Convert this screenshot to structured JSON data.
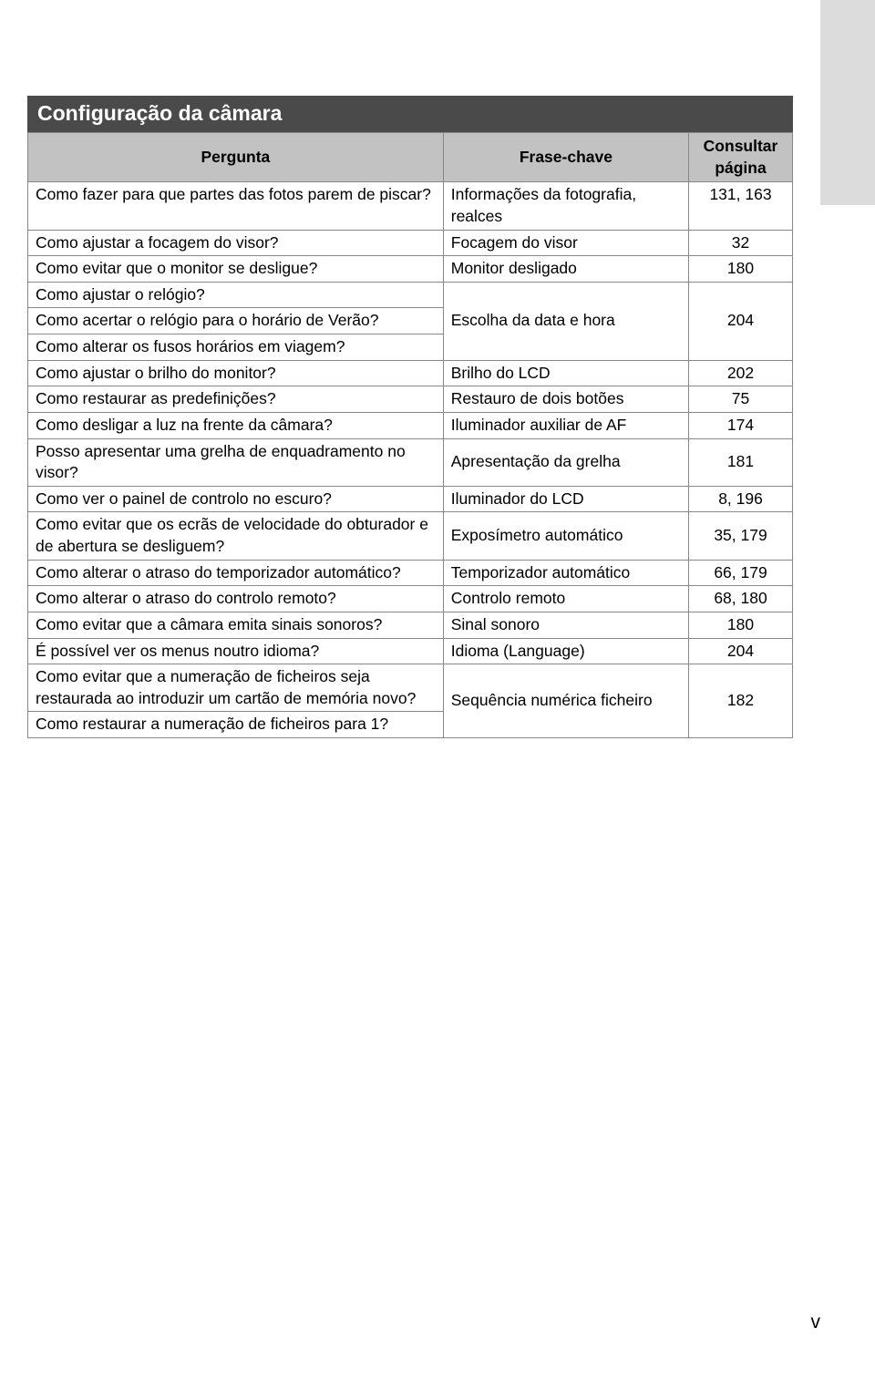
{
  "section_title": "Configuração da câmara",
  "columns": {
    "q": "Pergunta",
    "k": "Frase-chave",
    "p": "Consultar página"
  },
  "rows": [
    {
      "q": "Como fazer para que partes das fotos parem de piscar?",
      "k": "Informações da fotografia, realces",
      "p": "131, 163"
    },
    {
      "q": "Como ajustar a focagem do visor?",
      "k": "Focagem do visor",
      "p": "32"
    },
    {
      "q": "Como evitar que o monitor se desligue?",
      "k": "Monitor desligado",
      "p": "180"
    },
    {
      "q": "Como ajustar o relógio?",
      "k": "",
      "p": ""
    },
    {
      "q": "Como acertar o relógio para o horário de Verão?",
      "k": "Escolha da data e hora",
      "p": "204"
    },
    {
      "q": "Como alterar os fusos horários em viagem?",
      "k": "",
      "p": ""
    },
    {
      "q": "Como ajustar o brilho do monitor?",
      "k": "Brilho do LCD",
      "p": "202"
    },
    {
      "q": "Como restaurar as predefinições?",
      "k": "Restauro de dois botões",
      "p": "75"
    },
    {
      "q": "Como desligar a luz na frente da câmara?",
      "k": "Iluminador auxiliar de AF",
      "p": "174"
    },
    {
      "q": "Posso apresentar uma grelha de enquadramento no visor?",
      "k": "Apresentação da grelha",
      "p": "181"
    },
    {
      "q": "Como ver o painel de controlo no escuro?",
      "k": "Iluminador do LCD",
      "p": "8, 196"
    },
    {
      "q": "Como evitar que os ecrãs de velocidade do obturador e de abertura se desliguem?",
      "k": "Exposímetro automático",
      "p": "35, 179"
    },
    {
      "q": "Como alterar o atraso do temporizador automático?",
      "k": "Temporizador automático",
      "p": "66, 179"
    },
    {
      "q": "Como alterar o atraso do controlo remoto?",
      "k": "Controlo remoto",
      "p": "68, 180"
    },
    {
      "q": "Como evitar que a câmara emita sinais sonoros?",
      "k": "Sinal sonoro",
      "p": "180"
    },
    {
      "q": "É possível ver os menus noutro idioma?",
      "k": "Idioma (Language)",
      "p": "204"
    },
    {
      "q": "Como evitar que a numeração de ficheiros seja restaurada ao introduzir um cartão de memória novo?",
      "k": "",
      "p": ""
    },
    {
      "q": "Como restaurar a numeração de ficheiros para 1?",
      "k": "Sequência numérica ficheiro",
      "p": "182"
    }
  ],
  "merge_groups": [
    {
      "start": 3,
      "end": 5,
      "k": "Escolha da data e hora",
      "p": "204"
    },
    {
      "start": 16,
      "end": 17,
      "k": "Sequência numérica ficheiro",
      "p": "182"
    }
  ],
  "page_number": "v",
  "colors": {
    "header_bg": "#4a4a4a",
    "thead_bg": "#c2c2c2",
    "border": "#888888",
    "sidetab_bg": "#dcdcdc",
    "text": "#000000"
  }
}
